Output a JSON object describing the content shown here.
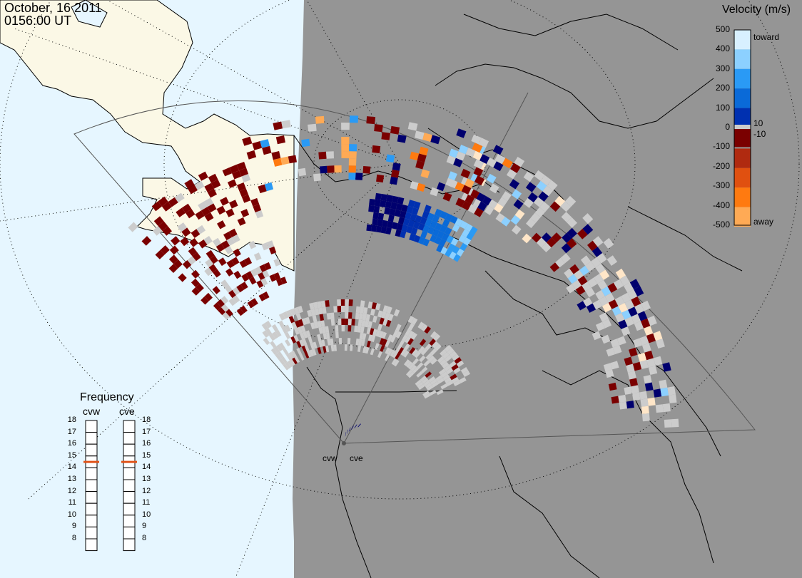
{
  "title": {
    "date": "October, 16 2011",
    "time": "0156:00 UT"
  },
  "legend": {
    "title": "Velocity (m/s)",
    "ticks": [
      "500",
      "400",
      "300",
      "200",
      "100",
      "0",
      "-100",
      "-200",
      "-300",
      "-400",
      "-500"
    ],
    "inner_ticks": [
      "10",
      "-10"
    ],
    "toward_label": "toward",
    "away_label": "away",
    "colors": [
      "#ffe6c8",
      "#ffaa55",
      "#ff7a10",
      "#e05010",
      "#b02a10",
      "#7a0000",
      "#cccccc",
      "#00006e",
      "#0030b0",
      "#0a6ad8",
      "#2a9af5",
      "#8cd0ff",
      "#d8f0ff"
    ]
  },
  "frequency": {
    "title": "Frequency",
    "radars": [
      {
        "name": "cvw",
        "value_mhz": 15
      },
      {
        "name": "cve",
        "value_mhz": 15
      }
    ],
    "scale": [
      "18",
      "17",
      "16",
      "15",
      "14",
      "13",
      "12",
      "11",
      "10",
      "9",
      "8"
    ],
    "marker_color": "#e0541a"
  },
  "sites": [
    "cvw",
    "cve"
  ],
  "map_colors": {
    "night": "#959595",
    "day_ocean": "#e6f6ff",
    "day_land": "#fbf8e6",
    "ground_scatter": "#cccccc"
  }
}
